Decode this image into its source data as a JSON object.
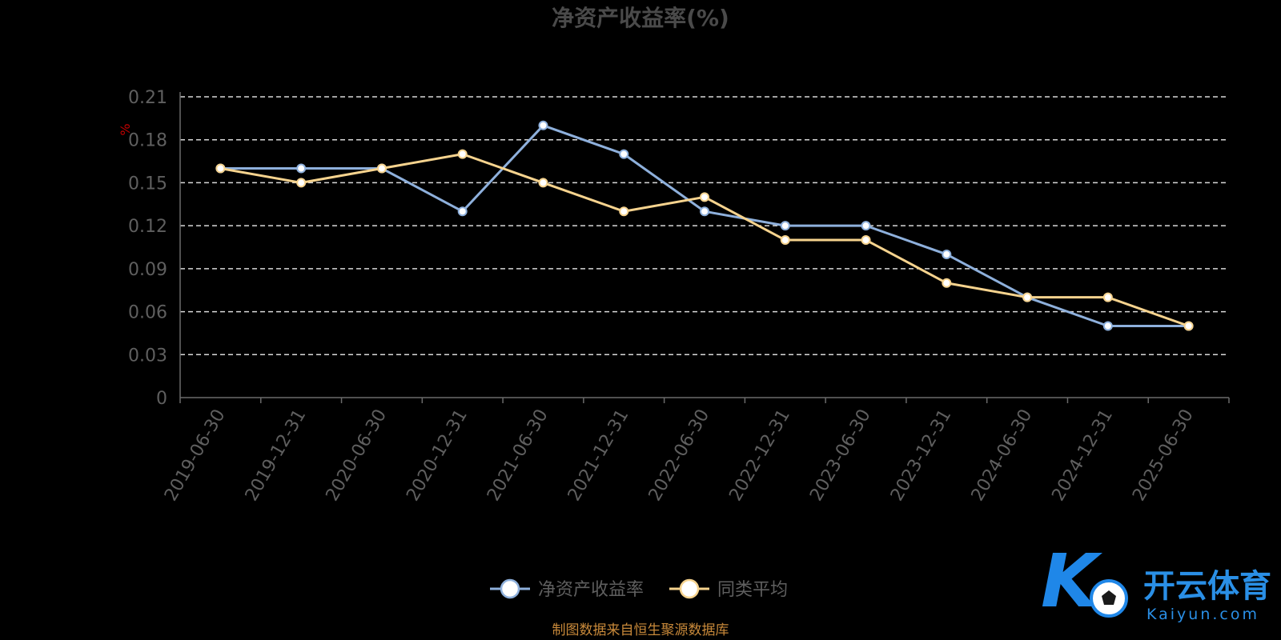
{
  "chart_data": {
    "type": "line",
    "title": "净资产收益率(%)",
    "ylabel": "%",
    "ylim": [
      0,
      0.21
    ],
    "yticks": [
      "0",
      "0.03",
      "0.06",
      "0.09",
      "0.12",
      "0.15",
      "0.18",
      "0.21"
    ],
    "grid": true,
    "legend_position": "bottom",
    "categories": [
      "2019-06-30",
      "2019-12-31",
      "2020-06-30",
      "2020-12-31",
      "2021-06-30",
      "2021-12-31",
      "2022-06-30",
      "2022-12-31",
      "2023-06-30",
      "2023-12-31",
      "2024-06-30",
      "2024-12-31",
      "2025-06-30"
    ],
    "series": [
      {
        "name": "净资产收益率",
        "color": "#8eb0dc",
        "values": [
          0.16,
          0.16,
          0.16,
          0.13,
          0.19,
          0.17,
          0.13,
          0.12,
          0.12,
          0.1,
          0.07,
          0.05,
          0.05
        ]
      },
      {
        "name": "同类平均",
        "color": "#f6d38e",
        "values": [
          0.16,
          0.15,
          0.16,
          0.17,
          0.15,
          0.13,
          0.14,
          0.11,
          0.11,
          0.08,
          0.07,
          0.07,
          0.05
        ]
      }
    ],
    "source": "制图数据来自恒生聚源数据库"
  },
  "logo": {
    "mark": "K",
    "name": "开云体育",
    "sub": "Kaiyun.com",
    "icon": "soccer-ball-icon"
  }
}
